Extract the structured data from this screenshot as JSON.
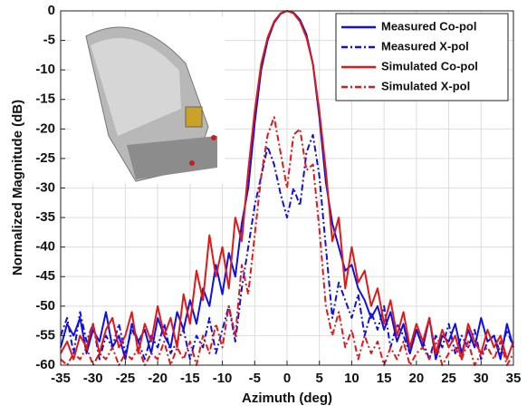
{
  "chart_data": {
    "type": "line",
    "xlabel": "Azimuth (deg)",
    "ylabel": "Normalized Magnitude (dB)",
    "x": [
      -35,
      -34,
      -33,
      -32,
      -31,
      -30,
      -29,
      -28,
      -27,
      -26,
      -25,
      -24,
      -23,
      -22,
      -21,
      -20,
      -19,
      -18,
      -17,
      -16,
      -15,
      -14,
      -13,
      -12,
      -11,
      -10,
      -9,
      -8,
      -7,
      -6,
      -5,
      -4,
      -3,
      -2,
      -1,
      0,
      1,
      2,
      3,
      4,
      5,
      6,
      7,
      8,
      9,
      10,
      11,
      12,
      13,
      14,
      15,
      16,
      17,
      18,
      19,
      20,
      21,
      22,
      23,
      24,
      25,
      26,
      27,
      28,
      29,
      30,
      31,
      32,
      33,
      34,
      35
    ],
    "series": [
      {
        "name": "Measured Co-pol",
        "color": "#1010e0",
        "style": "solid",
        "values": [
          -57,
          -53,
          -55,
          -52,
          -58,
          -54,
          -56,
          -51,
          -57,
          -55,
          -59,
          -53,
          -56,
          -54,
          -58,
          -52,
          -55,
          -57,
          -51,
          -54,
          -49,
          -53,
          -47,
          -50,
          -43,
          -48,
          -41,
          -45,
          -36,
          -30,
          -19,
          -10,
          -5,
          -2,
          -0.5,
          0,
          -0.3,
          -1.5,
          -4,
          -9,
          -18,
          -29,
          -36,
          -40,
          -44,
          -43,
          -47,
          -49,
          -52,
          -50,
          -54,
          -51,
          -56,
          -53,
          -58,
          -54,
          -57,
          -52,
          -59,
          -55,
          -56,
          -53,
          -58,
          -54,
          -57,
          -52,
          -56,
          -55,
          -59,
          -53,
          -57
        ]
      },
      {
        "name": "Measured X-pol",
        "color": "#1010e0",
        "style": "dashdot",
        "values": [
          -55,
          -52,
          -58,
          -51,
          -56,
          -53,
          -59,
          -55,
          -57,
          -53,
          -58,
          -54,
          -56,
          -59,
          -55,
          -57,
          -53,
          -58,
          -56,
          -54,
          -59,
          -55,
          -57,
          -52,
          -58,
          -54,
          -50,
          -56,
          -47,
          -40,
          -33,
          -28,
          -23,
          -26,
          -31,
          -35,
          -30,
          -33,
          -24,
          -21,
          -28,
          -40,
          -52,
          -46,
          -49,
          -52,
          -48,
          -55,
          -51,
          -54,
          -50,
          -57,
          -53,
          -55,
          -58,
          -54,
          -56,
          -59,
          -55,
          -57,
          -53,
          -58,
          -55,
          -57,
          -54,
          -59,
          -56,
          -55,
          -58,
          -54,
          -57
        ]
      },
      {
        "name": "Simulated Co-pol",
        "color": "#e01818",
        "style": "solid",
        "values": [
          -58,
          -56,
          -59,
          -55,
          -57,
          -53,
          -58,
          -54,
          -52,
          -57,
          -55,
          -51,
          -58,
          -53,
          -56,
          -50,
          -55,
          -52,
          -57,
          -48,
          -53,
          -44,
          -49,
          -38,
          -45,
          -40,
          -47,
          -35,
          -39,
          -27,
          -17,
          -9,
          -4.5,
          -1.8,
          -0.4,
          0,
          -0.4,
          -1.8,
          -4.5,
          -9,
          -17,
          -27,
          -39,
          -35,
          -47,
          -40,
          -46,
          -44,
          -50,
          -47,
          -53,
          -49,
          -55,
          -51,
          -57,
          -53,
          -56,
          -52,
          -58,
          -54,
          -57,
          -55,
          -59,
          -53,
          -56,
          -58,
          -54,
          -57,
          -55,
          -59,
          -56
        ]
      },
      {
        "name": "Simulated X-pol",
        "color": "#e01818",
        "style": "dashdot",
        "values": [
          -59,
          -60,
          -58,
          -59,
          -57,
          -60,
          -58,
          -59,
          -57,
          -60,
          -58,
          -59,
          -57,
          -60,
          -58,
          -59,
          -56,
          -60,
          -57,
          -59,
          -56,
          -60,
          -55,
          -58,
          -53,
          -57,
          -50,
          -55,
          -43,
          -48,
          -38,
          -28,
          -21,
          -18,
          -24,
          -30,
          -21,
          -20,
          -27,
          -26,
          -37,
          -50,
          -55,
          -51,
          -57,
          -54,
          -59,
          -55,
          -58,
          -56,
          -60,
          -57,
          -59,
          -56,
          -60,
          -58,
          -57,
          -59,
          -56,
          -60,
          -58,
          -57,
          -59,
          -56,
          -60,
          -58,
          -57,
          -59,
          -56,
          -60,
          -58
        ]
      }
    ],
    "xlim": [
      -35,
      35
    ],
    "xticks": [
      -35,
      -30,
      -25,
      -20,
      -15,
      -10,
      -5,
      0,
      5,
      10,
      15,
      20,
      25,
      30,
      35
    ],
    "ylim": [
      -60,
      0
    ],
    "yticks": [
      -60,
      -55,
      -50,
      -45,
      -40,
      -35,
      -30,
      -25,
      -20,
      -15,
      -10,
      -5,
      0
    ],
    "grid": true,
    "legend": "upper right"
  }
}
